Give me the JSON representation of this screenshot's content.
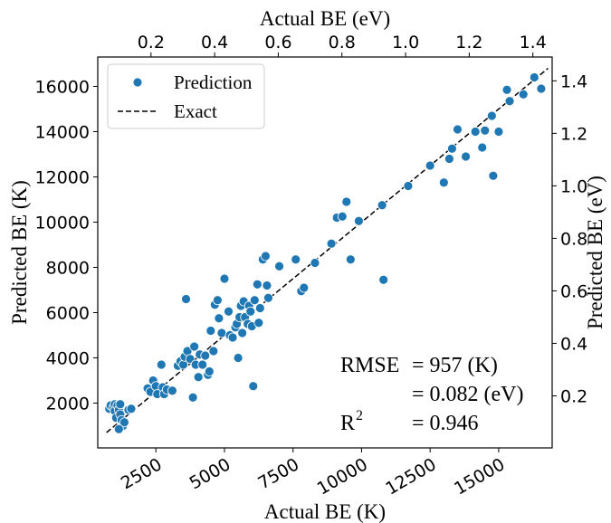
{
  "chart_data": {
    "type": "scatter",
    "xlabel_bottom": "Actual BE (K)",
    "xlabel_top": "Actual BE (eV)",
    "ylabel_left": "Predicted BE (K)",
    "ylabel_right": "Predicted BE (eV)",
    "xlim": [
      380,
      16950
    ],
    "ylim": [
      20,
      17300
    ],
    "x_ticks": [
      2500,
      5000,
      7500,
      10000,
      12500,
      15000
    ],
    "x_tick_labels": [
      "2500",
      "5000",
      "7500",
      "10000",
      "12500",
      "15000"
    ],
    "y_ticks": [
      2000,
      4000,
      6000,
      8000,
      10000,
      12000,
      14000,
      16000
    ],
    "y_tick_labels": [
      "2000",
      "4000",
      "6000",
      "8000",
      "10000",
      "12000",
      "14000",
      "16000"
    ],
    "top_ticks_ev": [
      0.2,
      0.4,
      0.6,
      0.8,
      1.0,
      1.2,
      1.4
    ],
    "top_tick_labels": [
      "0.2",
      "0.4",
      "0.6",
      "0.8",
      "1.0",
      "1.2",
      "1.4"
    ],
    "right_ticks_ev": [
      0.2,
      0.4,
      0.6,
      0.8,
      1.0,
      1.2,
      1.4
    ],
    "right_tick_labels": [
      "0.2",
      "0.4",
      "0.6",
      "0.8",
      "1.0",
      "1.2",
      "1.4"
    ],
    "grid": false,
    "legend_position": "top-left",
    "series": [
      {
        "name": "Prediction",
        "color": "#1f77b4",
        "marker": "circle",
        "points": [
          [
            800,
            1750
          ],
          [
            850,
            1900
          ],
          [
            950,
            1800
          ],
          [
            1000,
            1950
          ],
          [
            1000,
            1650
          ],
          [
            1050,
            1350
          ],
          [
            1100,
            1900
          ],
          [
            1150,
            1700
          ],
          [
            1200,
            1950
          ],
          [
            1200,
            1500
          ],
          [
            1250,
            1250
          ],
          [
            1300,
            1000
          ],
          [
            1350,
            1150
          ],
          [
            1150,
            850
          ],
          [
            1500,
            1700
          ],
          [
            1600,
            1750
          ],
          [
            2200,
            2650
          ],
          [
            2300,
            2500
          ],
          [
            2400,
            3000
          ],
          [
            2500,
            2750
          ],
          [
            2550,
            2400
          ],
          [
            2700,
            3700
          ],
          [
            2750,
            2700
          ],
          [
            2800,
            2400
          ],
          [
            2900,
            2600
          ],
          [
            3100,
            2550
          ],
          [
            3300,
            3650
          ],
          [
            3400,
            3850
          ],
          [
            3500,
            3700
          ],
          [
            3550,
            4050
          ],
          [
            3600,
            6600
          ],
          [
            3650,
            4300
          ],
          [
            3750,
            3950
          ],
          [
            3850,
            2250
          ],
          [
            3900,
            4500
          ],
          [
            3950,
            3700
          ],
          [
            4050,
            3150
          ],
          [
            4100,
            4150
          ],
          [
            4200,
            3700
          ],
          [
            4300,
            4100
          ],
          [
            4400,
            3250
          ],
          [
            4450,
            3400
          ],
          [
            4500,
            5200
          ],
          [
            4600,
            4300
          ],
          [
            4650,
            6350
          ],
          [
            4750,
            6550
          ],
          [
            4800,
            5750
          ],
          [
            4900,
            5100
          ],
          [
            5000,
            7500
          ],
          [
            5150,
            6050
          ],
          [
            5200,
            5000
          ],
          [
            5300,
            4900
          ],
          [
            5400,
            5350
          ],
          [
            5450,
            5500
          ],
          [
            5500,
            4000
          ],
          [
            5550,
            5800
          ],
          [
            5600,
            6300
          ],
          [
            5650,
            5100
          ],
          [
            5700,
            6500
          ],
          [
            5750,
            5800
          ],
          [
            5850,
            5500
          ],
          [
            5900,
            6300
          ],
          [
            5950,
            6050
          ],
          [
            6000,
            5400
          ],
          [
            6050,
            2750
          ],
          [
            6100,
            6550
          ],
          [
            6200,
            7250
          ],
          [
            6250,
            5550
          ],
          [
            6300,
            6200
          ],
          [
            6400,
            8350
          ],
          [
            6500,
            8500
          ],
          [
            6550,
            7200
          ],
          [
            6600,
            6650
          ],
          [
            7000,
            8050
          ],
          [
            7600,
            8350
          ],
          [
            7800,
            6950
          ],
          [
            7900,
            7100
          ],
          [
            8300,
            8200
          ],
          [
            8900,
            9050
          ],
          [
            9100,
            10200
          ],
          [
            9300,
            10250
          ],
          [
            9450,
            10900
          ],
          [
            9600,
            8350
          ],
          [
            9900,
            10050
          ],
          [
            10750,
            10750
          ],
          [
            10800,
            7450
          ],
          [
            11700,
            11600
          ],
          [
            12500,
            12500
          ],
          [
            13000,
            11750
          ],
          [
            13200,
            12800
          ],
          [
            13300,
            13250
          ],
          [
            13500,
            14100
          ],
          [
            13800,
            12900
          ],
          [
            14150,
            14000
          ],
          [
            14400,
            13300
          ],
          [
            14500,
            14050
          ],
          [
            14750,
            14700
          ],
          [
            14800,
            12050
          ],
          [
            15000,
            14000
          ],
          [
            15300,
            15850
          ],
          [
            15400,
            15350
          ],
          [
            15900,
            15650
          ],
          [
            16300,
            16400
          ],
          [
            16550,
            15900
          ]
        ]
      },
      {
        "name": "Exact",
        "color": "#000000",
        "line_style": "dashed",
        "points": [
          [
            700,
            700
          ],
          [
            16800,
            16800
          ]
        ]
      }
    ],
    "annotations": {
      "rmse_label": "RMSE",
      "rmse_k": "= 957 (K)",
      "rmse_ev": "= 0.082 (eV)",
      "r2_label": "R",
      "r2_sup": "2",
      "r2_value": "= 0.946"
    }
  }
}
